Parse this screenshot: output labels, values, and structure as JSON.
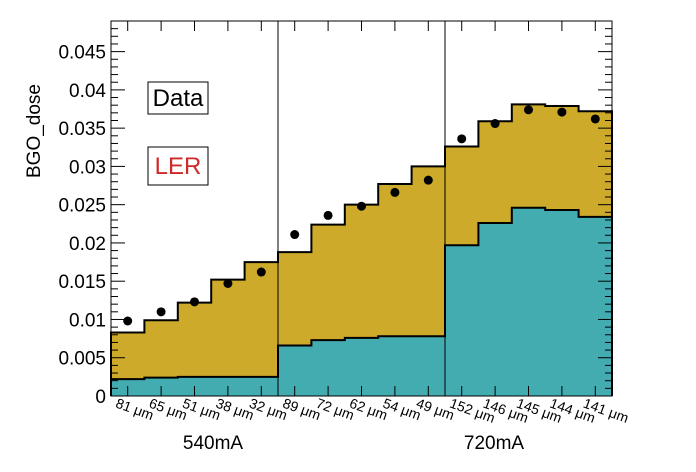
{
  "chart_data": {
    "type": "bar",
    "ylabel": "BGO_dose",
    "ylim": [
      0,
      0.049
    ],
    "y_ticks": [
      "0",
      "0.005",
      "0.01",
      "0.015",
      "0.02",
      "0.025",
      "0.03",
      "0.035",
      "0.04",
      "0.045"
    ],
    "categories": [
      "81 μm",
      "65 μm",
      "51 μm",
      "38 μm",
      "32 μm",
      "89 μm",
      "72 μm",
      "62 μm",
      "54 μm",
      "49 μm",
      "152 μm",
      "146 μm",
      "145 μm",
      "144 μm",
      "141 μm"
    ],
    "groups": [
      "540mA",
      "720mA"
    ],
    "series": [
      {
        "name": "",
        "kind": "stacked-bottom",
        "color": "#43acb1",
        "values": [
          0.0022,
          0.0024,
          0.0025,
          0.0025,
          0.0025,
          0.0066,
          0.0073,
          0.0076,
          0.0078,
          0.0078,
          0.0197,
          0.0226,
          0.0246,
          0.0243,
          0.0234
        ]
      },
      {
        "name": "",
        "kind": "stacked-total",
        "color": "#cdaa2a",
        "values": [
          0.0083,
          0.0099,
          0.0122,
          0.0152,
          0.0175,
          0.0188,
          0.0224,
          0.025,
          0.0277,
          0.03,
          0.0326,
          0.0359,
          0.0381,
          0.0379,
          0.0372
        ]
      },
      {
        "name": "Data",
        "kind": "points",
        "color": "#000000",
        "values": [
          0.0098,
          0.011,
          0.0123,
          0.0147,
          0.0162,
          0.0211,
          0.0236,
          0.0248,
          0.0266,
          0.0282,
          0.0336,
          0.0356,
          0.0374,
          0.0371,
          0.0362
        ]
      }
    ],
    "legend": [
      {
        "label": "Data",
        "color": "#000000"
      },
      {
        "label": "LER",
        "color": "#d0292a"
      }
    ],
    "separators_after_index": [
      4,
      9
    ]
  }
}
